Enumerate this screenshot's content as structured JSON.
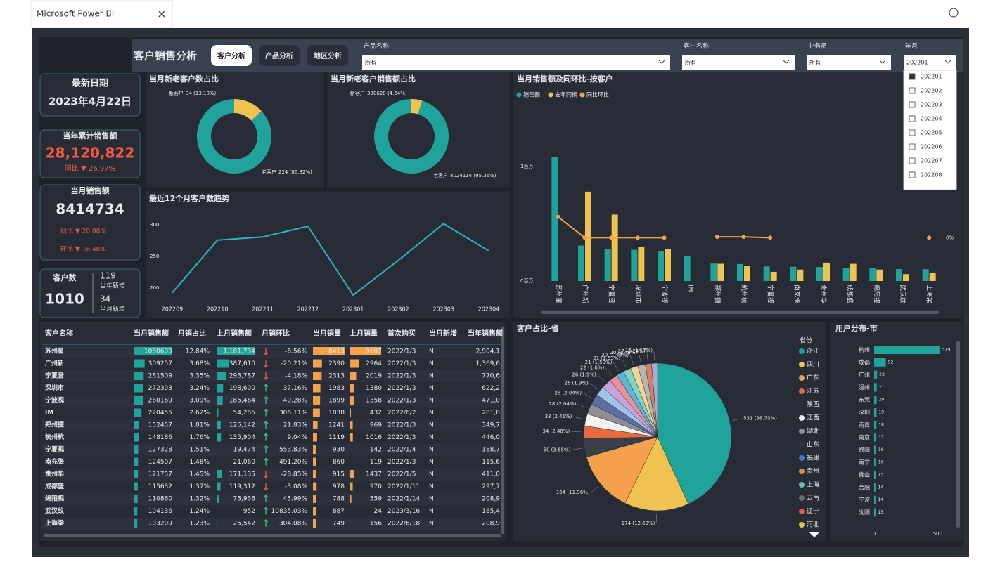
{
  "window": {
    "title": "Microsoft Power BI"
  },
  "header": {
    "title": "客户销售分析",
    "tabs": [
      "客户分析",
      "产品分析",
      "地区分析"
    ],
    "filters": [
      {
        "label": "产品名称",
        "value": "所有"
      },
      {
        "label": "客户名称",
        "value": "所有"
      },
      {
        "label": "业务员",
        "value": "所有"
      },
      {
        "label": "年月",
        "value": "202201"
      }
    ],
    "month_options": [
      "202201",
      "202202",
      "202203",
      "202204",
      "202205",
      "202206",
      "202207",
      "202208"
    ]
  },
  "kpis": {
    "latest_date": {
      "label": "最新日期",
      "value": "2023年4月22日"
    },
    "ytd_sales": {
      "label": "当年累计销售额",
      "value": "28,120,822",
      "yoy": "同比 ▼ 26.97%"
    },
    "month_sales": {
      "label": "当月销售额",
      "value": "8414734",
      "yoy": "同比 ▼ 28.08%",
      "mom": "环比 ▼ 18.48%"
    },
    "customers": {
      "label": "客户数",
      "value": "1010",
      "year_new": "119",
      "year_new_label": "当年新增",
      "month_new": "34",
      "month_new_label": "当月新增"
    }
  },
  "donut_count": {
    "type": "donut",
    "title": "当月新老客户数占比",
    "slices": [
      {
        "name": "新客户",
        "value": 34,
        "label": "34 (13.18%)",
        "color": "#f0c24f"
      },
      {
        "name": "老客户",
        "value": 224,
        "label": "224 (86.82%)",
        "color": "#1fa39a"
      }
    ]
  },
  "donut_sales": {
    "type": "donut",
    "title": "当月新老客户销售额占比",
    "slices": [
      {
        "name": "新客户",
        "value": 390620,
        "label": "390620 (4.64%)",
        "color": "#f0c24f"
      },
      {
        "name": "老客户",
        "value": 8024114,
        "label": "8024114 (95.36%)",
        "color": "#1fa39a"
      }
    ]
  },
  "trend": {
    "type": "line",
    "title": "最近12个月客户数趋势",
    "x": [
      "202209",
      "202210",
      "202211",
      "202212",
      "202301",
      "202302",
      "202303",
      "202304"
    ],
    "values": [
      193,
      276,
      281,
      298,
      189,
      244,
      302,
      259
    ],
    "ylim": [
      178,
      328
    ],
    "yticks": [
      200,
      250,
      300
    ],
    "color": "#2bb5c0"
  },
  "sales_bar": {
    "type": "bar_line",
    "title": "当月销售额及同环比-按客户",
    "categories": [
      "苏州星",
      "广州新",
      "宁夏音",
      "深圳市",
      "宁波视",
      "IM",
      "郑州捷",
      "杭州杭",
      "宁夏视",
      "南充张",
      "贵州华",
      "成都盛",
      "绵阳视",
      "武汉纹",
      "上海梁"
    ],
    "series": [
      {
        "name": "销售额",
        "color": "#1fa39a",
        "values": [
          1080609,
          309257,
          281509,
          272393,
          260169,
          220455,
          152457,
          148186,
          127328,
          124507,
          121757,
          115632,
          110860,
          104136,
          103209
        ]
      },
      {
        "name": "去年同期",
        "color": "#f0c24f",
        "values": [
          0,
          780000,
          580000,
          300000,
          280000,
          0,
          150000,
          130000,
          80000,
          100000,
          160000,
          150000,
          100000,
          60000,
          70000
        ]
      },
      {
        "name": "同比环比",
        "color": "#f5a04a",
        "axis": "y2",
        "values": [
          24,
          0,
          0,
          0,
          0,
          null,
          1,
          1,
          0,
          null,
          null,
          null,
          null,
          null,
          0
        ]
      }
    ],
    "ylim": [
      0,
      1135000
    ],
    "yticks": [
      {
        "value": 0,
        "label": "0百万"
      },
      {
        "value": 1000000,
        "label": "1百万"
      }
    ],
    "y2lim": [
      -50,
      100
    ],
    "y2ticks": [
      {
        "value": 0,
        "label": "0%"
      }
    ]
  },
  "table": {
    "columns": [
      "客户名称",
      "当月销售额",
      "月销占比",
      "上月销售额",
      "月销环比",
      "当月销量",
      "上月销量",
      "首次购买",
      "当月新增",
      "当年销售额"
    ],
    "rows": [
      [
        "苏州星",
        1080609,
        "12.84%",
        {
          "value": 1181734,
          "label": "1,181,734"
        },
        "-8.56%",
        8413,
        9607,
        "2022/1/3",
        "N",
        "2,904,1"
      ],
      [
        "广州新",
        309257,
        "3.68%",
        {
          "value": 387610,
          "label": "387,610"
        },
        "-20.21%",
        2390,
        2964,
        "2022/1/3",
        "N",
        "1,369,6"
      ],
      [
        "宁夏音",
        281509,
        "3.35%",
        {
          "value": 293787,
          "label": "293,787"
        },
        "-4.18%",
        2313,
        2019,
        "2022/1/3",
        "N",
        "770,6"
      ],
      [
        "深圳市",
        272393,
        "3.24%",
        {
          "value": 198600,
          "label": "198,600"
        },
        "37.16%",
        1983,
        1380,
        "2022/1/3",
        "N",
        "622,2"
      ],
      [
        "宁波视",
        260169,
        "3.09%",
        {
          "value": 185464,
          "label": "185,464"
        },
        "40.28%",
        1899,
        1358,
        "2022/1/3",
        "N",
        "471,0"
      ],
      [
        "IM",
        220455,
        "2.62%",
        {
          "value": 54285,
          "label": "54,285"
        },
        "306.11%",
        1838,
        432,
        "2022/6/2",
        "N",
        "281,8"
      ],
      [
        "郑州捷",
        152457,
        "1.81%",
        {
          "value": 125142,
          "label": "125,142"
        },
        "21.83%",
        1241,
        969,
        "2022/1/3",
        "N",
        "349,7"
      ],
      [
        "杭州杭",
        148186,
        "1.76%",
        {
          "value": 135904,
          "label": "135,904"
        },
        "9.04%",
        1119,
        1016,
        "2022/1/3",
        "N",
        "446,0"
      ],
      [
        "宁夏视",
        127328,
        "1.51%",
        {
          "value": 19474,
          "label": "19,474"
        },
        "553.83%",
        930,
        142,
        "2022/1/4",
        "N",
        "188,7"
      ],
      [
        "南充张",
        124507,
        "1.48%",
        {
          "value": 21060,
          "label": "21,060"
        },
        "491.20%",
        860,
        119,
        "2022/1/3",
        "N",
        "115,6"
      ],
      [
        "贵州华",
        121757,
        "1.45%",
        {
          "value": 171135,
          "label": "171,135"
        },
        "-28.85%",
        915,
        1437,
        "2022/1/5",
        "N",
        "411,0"
      ],
      [
        "成都盛",
        115632,
        "1.37%",
        {
          "value": 119312,
          "label": "119,312"
        },
        "-3.08%",
        978,
        970,
        "2022/1/11",
        "N",
        "297,7"
      ],
      [
        "绵阳视",
        110860,
        "1.32%",
        {
          "value": 75936,
          "label": "75,936"
        },
        "45.99%",
        788,
        559,
        "2022/1/14",
        "N",
        "208,9"
      ],
      [
        "武汉纹",
        104136,
        "1.24%",
        {
          "value": 952,
          "label": "952"
        },
        "10835.03%",
        887,
        24,
        "2023/3/16",
        "N",
        "185,4"
      ],
      [
        "上海梁",
        103209,
        "1.23%",
        {
          "value": 25542,
          "label": "25,542"
        },
        "304.08%",
        749,
        156,
        "2022/6/18",
        "N",
        "208,9"
      ]
    ]
  },
  "province_pie": {
    "type": "pie",
    "title": "客户占比-省",
    "slices": [
      {
        "value": 531,
        "label": "531 (38.73%)"
      },
      {
        "value": 174,
        "label": "174 (12.69%)"
      },
      {
        "value": 164,
        "label": "164 (11.96%)"
      },
      {
        "value": 50,
        "label": "50 (3.65%)"
      },
      {
        "value": 34,
        "label": "34 (2.48%)"
      },
      {
        "value": 33,
        "label": "33 (2.41%)"
      },
      {
        "value": 28,
        "label": "28 (2.04%)"
      },
      {
        "value": 28,
        "label": "28 (2.04%)"
      },
      {
        "value": 26,
        "label": "26 (1.9%)"
      },
      {
        "value": 26,
        "label": "26 (1.9%)"
      },
      {
        "value": 22,
        "label": "22 (1.6%)"
      },
      {
        "value": 21,
        "label": "21 (1.53%)"
      },
      {
        "value": 21,
        "label": "21 (1.53%)"
      },
      {
        "value": 20,
        "label": "20 (1.46%)"
      },
      {
        "value": 20,
        "label": "20 (1.46%)"
      },
      {
        "value": 17,
        "label": "17 (1.24%)"
      },
      {
        "value": 16,
        "label": "16 (1.17%)"
      }
    ],
    "colors": [
      "#1fa39a",
      "#f0c24f",
      "#f5a04a",
      "#3a3f4a",
      "#e96a3c",
      "#f2f2f2",
      "#8c8f96",
      "#5d6fa3",
      "#9fc3e6",
      "#c6a2d8",
      "#e8909c",
      "#5fb3d5",
      "#7fd3c0",
      "#f4d58d",
      "#b5b5b5",
      "#d87f5f",
      "#9bb0d6"
    ],
    "legend_title": "省份",
    "legend": [
      {
        "name": "浙江",
        "color": "#1fa39a"
      },
      {
        "name": "四川",
        "color": "#f0c24f"
      },
      {
        "name": "广东",
        "color": "#f5a04a"
      },
      {
        "name": "江苏",
        "color": "#e96a3c"
      },
      {
        "name": "陕西",
        "color": "#2b2f3a"
      },
      {
        "name": "江西",
        "color": "#f2f2f2"
      },
      {
        "name": "湖北",
        "color": "#8c8f96"
      },
      {
        "name": "山东",
        "color": "#30343f"
      },
      {
        "name": "福建",
        "color": "#3a7bd5"
      },
      {
        "name": "贵州",
        "color": "#e08a3c"
      },
      {
        "name": "上海",
        "color": "#5fc3c0"
      },
      {
        "name": "云南",
        "color": "#6c6c6c"
      },
      {
        "name": "辽宁",
        "color": "#e05a3a"
      },
      {
        "name": "河北",
        "color": "#e8c04a"
      }
    ]
  },
  "city_bar": {
    "type": "hbar",
    "title": "用户分布-市",
    "categories": [
      "杭州",
      "成都",
      "广州",
      "温州",
      "东莞",
      "深圳",
      "南昌",
      "南京",
      "绵阳",
      "南宁",
      "佛山",
      "合肥",
      "宁波",
      "沈阳"
    ],
    "values": [
      519,
      92,
      23,
      21,
      20,
      19,
      18,
      17,
      16,
      16,
      15,
      14,
      14,
      13
    ],
    "color": "#1fa39a",
    "xlim": [
      0,
      520
    ],
    "xticks": [
      0,
      500
    ]
  }
}
